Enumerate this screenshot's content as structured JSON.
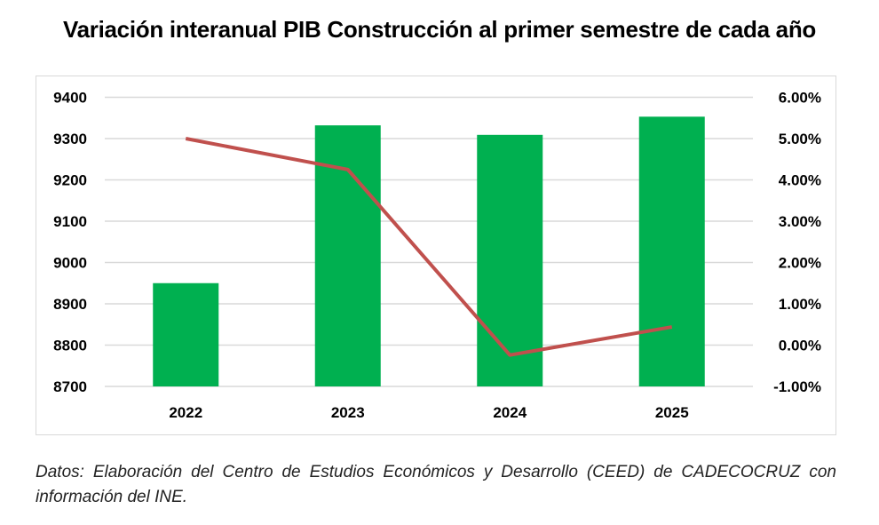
{
  "chart_data": {
    "type": "bar+line",
    "title": "Variación interanual PIB Construcción al primer semestre de cada año",
    "categories": [
      "2022",
      "2023",
      "2024",
      "2025"
    ],
    "series": [
      {
        "type": "bar",
        "axis": "left",
        "color": "#00b050",
        "values": [
          8950,
          9332,
          9309,
          9353
        ]
      },
      {
        "type": "line",
        "axis": "right",
        "color": "#c0504d",
        "values": [
          5.0,
          4.25,
          -0.24,
          0.44
        ]
      }
    ],
    "left_axis": {
      "ylim": [
        8700,
        9400
      ],
      "ticks": [
        "9400",
        "9300",
        "9200",
        "9100",
        "9000",
        "8900",
        "8800",
        "8700"
      ]
    },
    "right_axis": {
      "ylim": [
        -1,
        6
      ],
      "ticks": [
        "6.00%",
        "5.00%",
        "4.00%",
        "3.00%",
        "2.00%",
        "1.00%",
        "0.00%",
        "-1.00%"
      ]
    },
    "grid": true,
    "legend": "none"
  },
  "footnote": "Datos: Elaboración del Centro de Estudios Económicos y Desarrollo (CEED) de CADECOCRUZ con información del INE."
}
